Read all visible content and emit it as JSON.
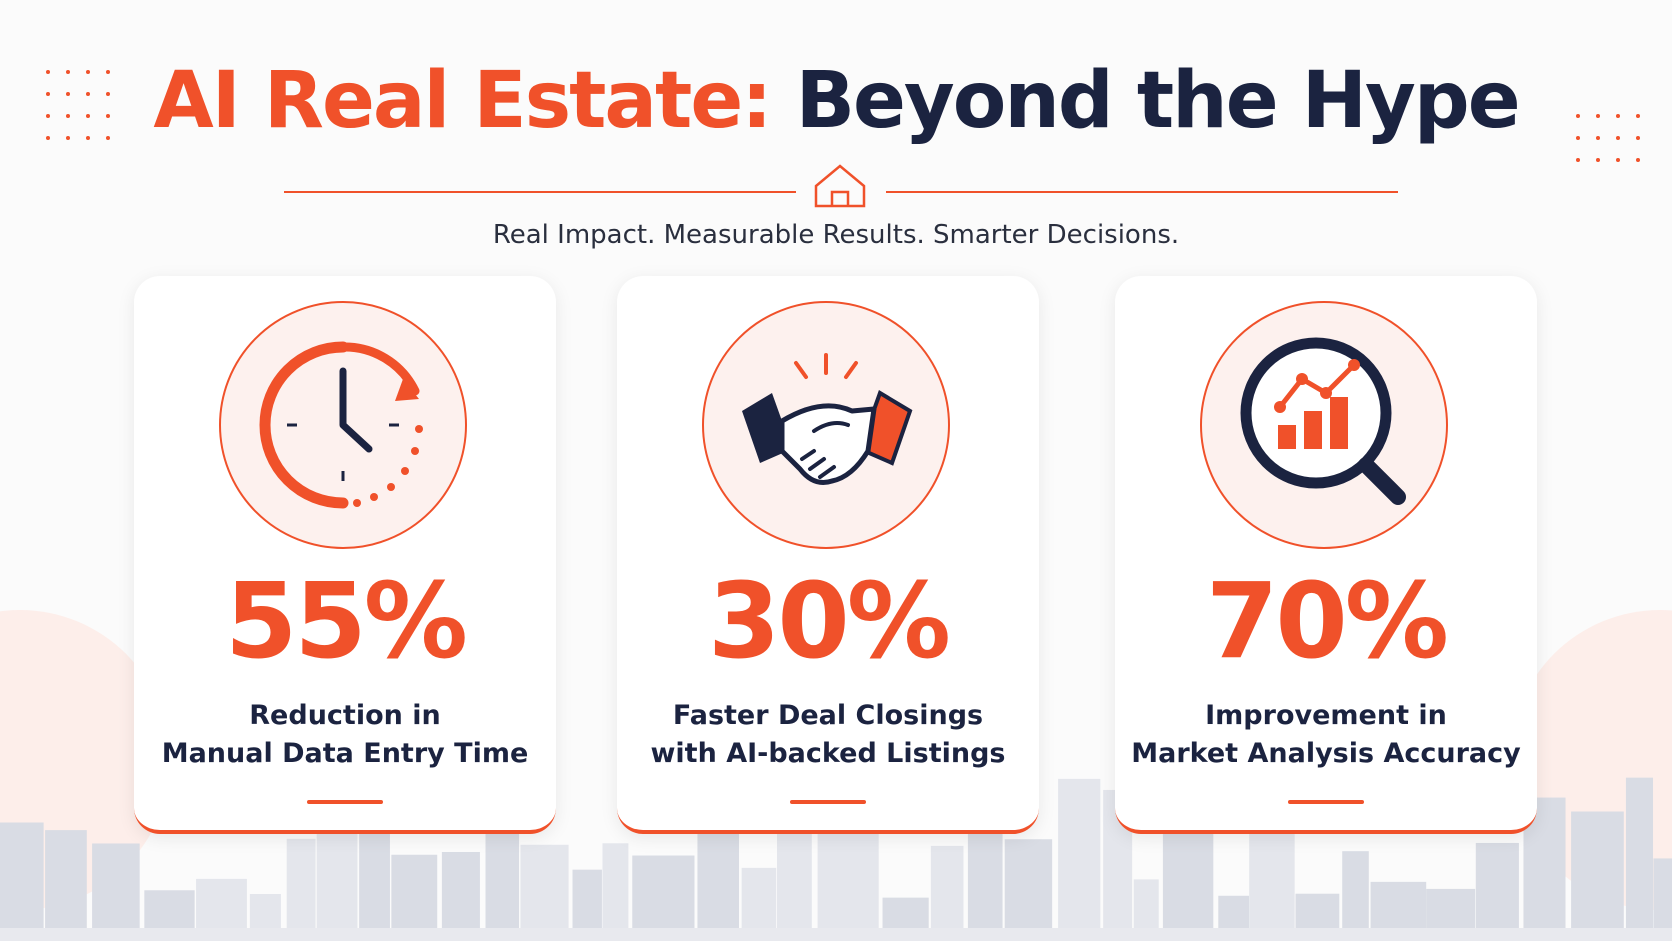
{
  "title": {
    "highlight": "AI Real Estate:",
    "rest": "Beyond the Hype"
  },
  "subtitle": "Real Impact. Measurable Results. Smarter Decisions.",
  "cards": [
    {
      "stat": "55%",
      "label": [
        "Reduction in",
        "Manual Data Entry Time"
      ]
    },
    {
      "stat": "30%",
      "label": [
        "Faster Deal Closings",
        "with AI-backed Listings"
      ]
    },
    {
      "stat": "70%",
      "label": [
        "Improvement in",
        "Market Analysis Accuracy"
      ]
    }
  ]
}
